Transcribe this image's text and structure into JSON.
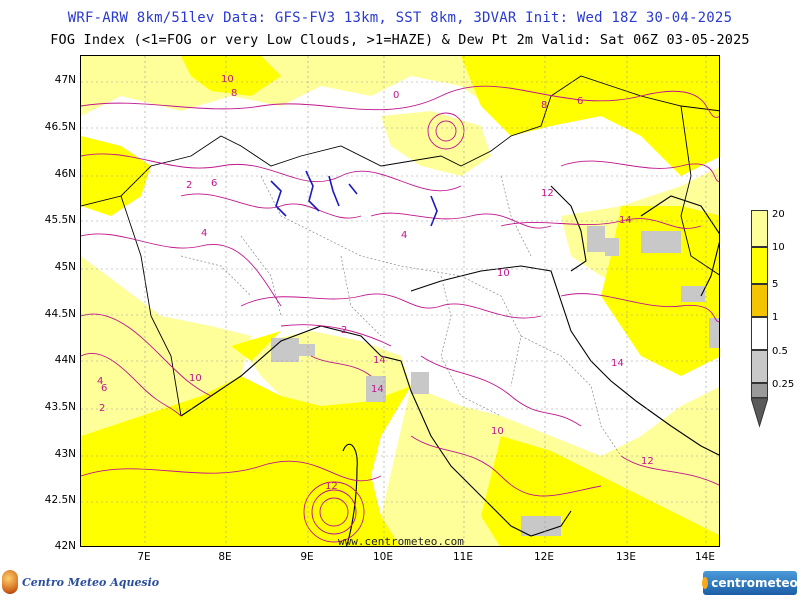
{
  "header": {
    "line1": "WRF-ARW 8km/51lev  Data: GFS-FV3 13km, SST 8km, 3DVAR  Init: Wed 18Z 30-04-2025",
    "line2": "FOG Index (<1=FOG or very Low Clouds, >1=HAZE) & Dew Pt 2m  Valid: Sat 06Z 03-05-2025"
  },
  "axes": {
    "lat_labels": [
      "47N",
      "46.5N",
      "46N",
      "45.5N",
      "45N",
      "44.5N",
      "44N",
      "43.5N",
      "43N",
      "42.5N",
      "42N"
    ],
    "lon_labels": [
      "7E",
      "8E",
      "9E",
      "10E",
      "11E",
      "12E",
      "13E",
      "14E"
    ]
  },
  "colorbar": {
    "labels": [
      "20",
      "10",
      "5",
      "1",
      "0.5",
      "0.25"
    ],
    "colors": [
      "#ffff9a",
      "#ffff00",
      "#f4c400",
      "#ffffff",
      "#c8c8c8",
      "#9a9a9a",
      "#5a5a5a"
    ]
  },
  "contour_labels": [
    "10",
    "8",
    "6",
    "4",
    "2",
    "0",
    "12",
    "14",
    "10",
    "8",
    "6",
    "4",
    "2",
    "12",
    "14",
    "10",
    "14",
    "12",
    "6",
    "4",
    "2",
    "10",
    "14"
  ],
  "watermark": "www.centrometeo.com",
  "logos": {
    "left": "Centro Meteo Aquesio",
    "right": "centrometeo"
  },
  "colors": {
    "title": "#2a3ad0",
    "contour": "#c0158c",
    "fog_yellow": "#ffff00",
    "haze_light_yellow": "#ffff9a",
    "low_cloud_gray": "#c8c8c8",
    "lakes": "#1a1ac0",
    "borders": "#000000"
  }
}
